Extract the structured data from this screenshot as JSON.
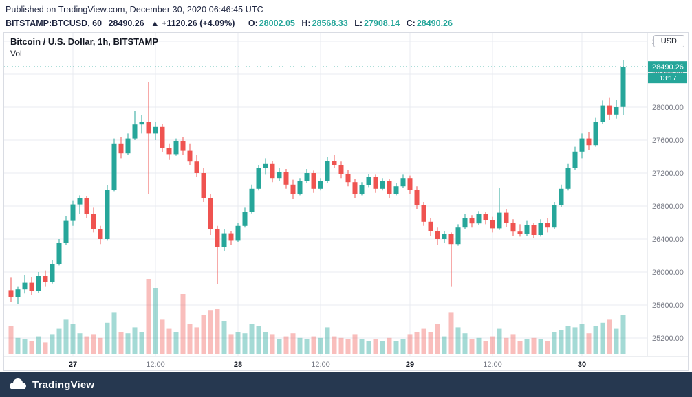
{
  "page": {
    "published_line": "Published on TradingView.com, December 30, 2020 06:46:45 UTC",
    "symbol_line": {
      "symbol": "BITSTAMP:BTCUSD, 60",
      "last": "28490.26",
      "change": "▲ +1120.26 (+4.09%)",
      "o_label": "O:",
      "o": "28002.05",
      "h_label": "H:",
      "h": "28568.33",
      "l_label": "L:",
      "l": "27908.14",
      "c_label": "C:",
      "c": "28490.26"
    }
  },
  "legend": {
    "title": "Bitcoin / U.S. Dollar, 1h, BITSTAMP",
    "indicator": "Vol"
  },
  "axis": {
    "currency_button": "USD",
    "price_label": "28490.26",
    "countdown": "13:17"
  },
  "footer": {
    "brand": "TradingView"
  },
  "colors": {
    "up": "#26a69a",
    "down": "#ef5350",
    "navy": "#1e2540",
    "axis_text": "#787b86",
    "day_text": "#131722",
    "grid": "#e9ebf0",
    "border": "#d9dce3",
    "footer_bg": "#263850"
  },
  "chart_data": {
    "type": "candlestick",
    "symbol": "BITSTAMP:BTCUSD",
    "interval": "60",
    "title": "Bitcoin / U.S. Dollar, 1h, BITSTAMP",
    "price_axis": {
      "min": 25200,
      "max": 28800,
      "step": 400
    },
    "time_ticks": [
      {
        "i": 9,
        "label": "27",
        "day": true
      },
      {
        "i": 21,
        "label": "12:00",
        "day": false
      },
      {
        "i": 33,
        "label": "28",
        "day": true
      },
      {
        "i": 45,
        "label": "12:00",
        "day": false
      },
      {
        "i": 58,
        "label": "29",
        "day": true
      },
      {
        "i": 70,
        "label": "12:00",
        "day": false
      },
      {
        "i": 83,
        "label": "30",
        "day": true
      }
    ],
    "last_price": 28490.26,
    "countdown": "13:17",
    "ohlc_current": {
      "o": 28002.05,
      "h": 28568.33,
      "l": 27908.14,
      "c": 28490.26
    },
    "candle_columns": [
      "open",
      "high",
      "low",
      "close",
      "rel_volume"
    ],
    "candles": [
      [
        25780,
        25930,
        25640,
        25700,
        38
      ],
      [
        25700,
        25820,
        25610,
        25790,
        22
      ],
      [
        25790,
        25960,
        25740,
        25870,
        20
      ],
      [
        25870,
        25940,
        25720,
        25770,
        18
      ],
      [
        25770,
        26000,
        25750,
        25950,
        24
      ],
      [
        25950,
        26020,
        25820,
        25880,
        16
      ],
      [
        25880,
        26150,
        25860,
        26100,
        26
      ],
      [
        26100,
        26400,
        26080,
        26350,
        34
      ],
      [
        26350,
        26680,
        26330,
        26620,
        46
      ],
      [
        26620,
        26870,
        26560,
        26820,
        40
      ],
      [
        26820,
        26930,
        26700,
        26900,
        28
      ],
      [
        26900,
        26920,
        26650,
        26700,
        24
      ],
      [
        26700,
        26780,
        26480,
        26520,
        26
      ],
      [
        26520,
        26560,
        26340,
        26400,
        22
      ],
      [
        26400,
        27050,
        26380,
        27000,
        42
      ],
      [
        27000,
        27620,
        26980,
        27560,
        56
      ],
      [
        27560,
        27640,
        27380,
        27440,
        30
      ],
      [
        27440,
        27680,
        27420,
        27620,
        28
      ],
      [
        27620,
        27950,
        27600,
        27790,
        36
      ],
      [
        27790,
        27900,
        27680,
        27820,
        30
      ],
      [
        27820,
        28300,
        26950,
        27680,
        100
      ],
      [
        27680,
        27820,
        27600,
        27760,
        88
      ],
      [
        27760,
        27800,
        27450,
        27500,
        46
      ],
      [
        27500,
        27560,
        27360,
        27430,
        34
      ],
      [
        27430,
        27620,
        27410,
        27590,
        30
      ],
      [
        27590,
        27640,
        27420,
        27470,
        80
      ],
      [
        27470,
        27560,
        27300,
        27340,
        40
      ],
      [
        27340,
        27420,
        27150,
        27200,
        36
      ],
      [
        27200,
        27260,
        26850,
        26900,
        52
      ],
      [
        26900,
        26950,
        26450,
        26520,
        58
      ],
      [
        26520,
        26560,
        25850,
        26300,
        60
      ],
      [
        26300,
        26520,
        26250,
        26470,
        44
      ],
      [
        26470,
        26500,
        26330,
        26380,
        26
      ],
      [
        26380,
        26600,
        26360,
        26560,
        30
      ],
      [
        26560,
        26780,
        26540,
        26730,
        28
      ],
      [
        26730,
        27060,
        26710,
        27010,
        40
      ],
      [
        27010,
        27300,
        26990,
        27260,
        38
      ],
      [
        27260,
        27380,
        27180,
        27310,
        30
      ],
      [
        27310,
        27350,
        27090,
        27140,
        26
      ],
      [
        27140,
        27260,
        27100,
        27210,
        20
      ],
      [
        27210,
        27250,
        27010,
        27060,
        24
      ],
      [
        27060,
        27120,
        26890,
        26950,
        28
      ],
      [
        26950,
        27140,
        26930,
        27100,
        22
      ],
      [
        27100,
        27250,
        27080,
        27200,
        20
      ],
      [
        27200,
        27230,
        26960,
        27010,
        24
      ],
      [
        27010,
        27140,
        26990,
        27100,
        22
      ],
      [
        27100,
        27400,
        27080,
        27350,
        36
      ],
      [
        27350,
        27420,
        27260,
        27300,
        24
      ],
      [
        27300,
        27340,
        27140,
        27190,
        22
      ],
      [
        27190,
        27240,
        27040,
        27090,
        20
      ],
      [
        27090,
        27130,
        26900,
        26950,
        26
      ],
      [
        26950,
        27090,
        26930,
        27050,
        20
      ],
      [
        27050,
        27190,
        27030,
        27150,
        18
      ],
      [
        27150,
        27180,
        26960,
        27010,
        20
      ],
      [
        27010,
        27140,
        26990,
        27100,
        18
      ],
      [
        27100,
        27130,
        26900,
        26950,
        22
      ],
      [
        26950,
        27080,
        26930,
        27040,
        18
      ],
      [
        27040,
        27180,
        27020,
        27140,
        20
      ],
      [
        27140,
        27170,
        26950,
        27000,
        26
      ],
      [
        27000,
        27040,
        26760,
        26810,
        30
      ],
      [
        26810,
        26850,
        26560,
        26610,
        34
      ],
      [
        26610,
        26650,
        26440,
        26500,
        30
      ],
      [
        26500,
        26540,
        26330,
        26400,
        40
      ],
      [
        26400,
        26500,
        26350,
        26460,
        24
      ],
      [
        26460,
        26480,
        25820,
        26340,
        56
      ],
      [
        26340,
        26580,
        26320,
        26540,
        36
      ],
      [
        26540,
        26700,
        26520,
        26650,
        28
      ],
      [
        26650,
        26690,
        26540,
        26590,
        20
      ],
      [
        26590,
        26740,
        26570,
        26700,
        22
      ],
      [
        26700,
        26730,
        26580,
        26630,
        18
      ],
      [
        26630,
        26670,
        26480,
        26530,
        24
      ],
      [
        26530,
        27020,
        26510,
        26720,
        34
      ],
      [
        26720,
        26760,
        26550,
        26600,
        22
      ],
      [
        26600,
        26640,
        26440,
        26490,
        26
      ],
      [
        26490,
        26580,
        26430,
        26460,
        18
      ],
      [
        26460,
        26620,
        26440,
        26570,
        20
      ],
      [
        26570,
        26600,
        26410,
        26450,
        22
      ],
      [
        26450,
        26640,
        26430,
        26600,
        20
      ],
      [
        26600,
        26650,
        26480,
        26540,
        18
      ],
      [
        26540,
        26850,
        26520,
        26810,
        30
      ],
      [
        26810,
        27060,
        26790,
        27010,
        32
      ],
      [
        27010,
        27310,
        26990,
        27260,
        38
      ],
      [
        27260,
        27520,
        27240,
        27460,
        36
      ],
      [
        27460,
        27680,
        27380,
        27620,
        40
      ],
      [
        27620,
        27700,
        27480,
        27540,
        28
      ],
      [
        27540,
        27870,
        27520,
        27820,
        38
      ],
      [
        27820,
        28080,
        27800,
        28020,
        42
      ],
      [
        28020,
        28120,
        27850,
        27910,
        46
      ],
      [
        27910,
        28090,
        27860,
        28000,
        34
      ],
      [
        28002.05,
        28568.33,
        27908.14,
        28490.26,
        52
      ]
    ]
  }
}
